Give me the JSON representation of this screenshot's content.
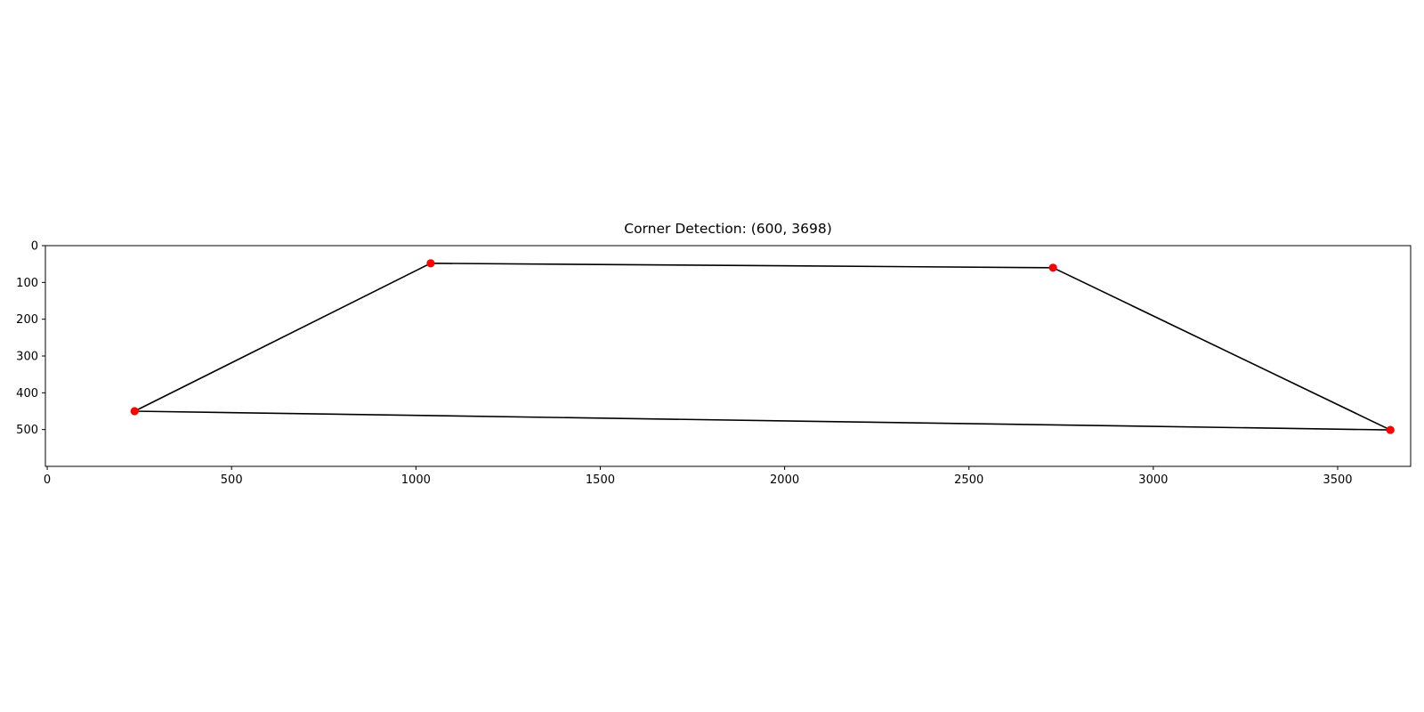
{
  "chart_data": {
    "type": "line",
    "title": "Corner Detection: (600, 3698)",
    "xlabel": "",
    "ylabel": "",
    "xlim": [
      -5,
      3698
    ],
    "ylim": [
      600,
      0
    ],
    "y_inverted": true,
    "grid": false,
    "x_ticks": [
      0,
      500,
      1000,
      1500,
      2000,
      2500,
      3000,
      3500
    ],
    "y_ticks": [
      0,
      100,
      200,
      300,
      400,
      500
    ],
    "outline": {
      "color": "#000000",
      "points": [
        {
          "x": 237,
          "y": 450
        },
        {
          "x": 1040,
          "y": 48
        },
        {
          "x": 2728,
          "y": 60
        },
        {
          "x": 3643,
          "y": 501
        },
        {
          "x": 237,
          "y": 450
        }
      ]
    },
    "corners": {
      "color": "#ff0000",
      "points": [
        {
          "x": 237,
          "y": 450
        },
        {
          "x": 1040,
          "y": 48
        },
        {
          "x": 2728,
          "y": 60
        },
        {
          "x": 3643,
          "y": 501
        }
      ]
    }
  }
}
